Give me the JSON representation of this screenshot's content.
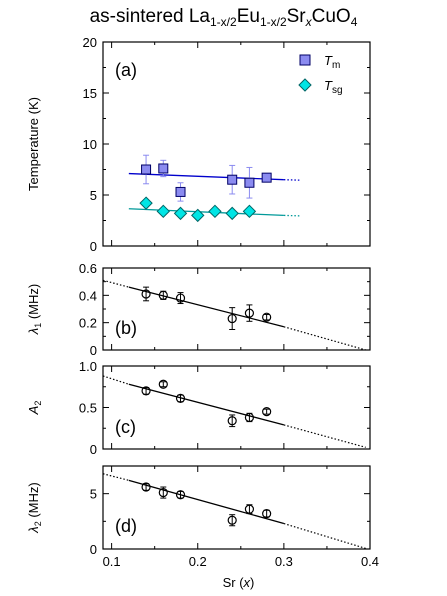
{
  "title": {
    "prefix": "as-sintered La",
    "la_sub": "1-x/2",
    "eu": "Eu",
    "eu_sub": "1-x/2",
    "sr": "Sr",
    "sr_sub": "x",
    "suffix": "CuO",
    "o_sub": "4"
  },
  "chart_data": [
    {
      "type": "scatter",
      "panel_label": "(a)",
      "ylabel": "Temperature (K)",
      "ylim": [
        0,
        20
      ],
      "yticks": [
        0,
        5,
        10,
        15,
        20
      ],
      "xlim": [
        0.09,
        0.4
      ],
      "legend_position": "top-right",
      "series": [
        {
          "name": "Tm",
          "name_main": "T",
          "name_sub": "m",
          "marker": "square",
          "color": "#8b8bf0",
          "x": [
            0.14,
            0.16,
            0.18,
            0.24,
            0.26,
            0.28
          ],
          "y": [
            7.5,
            7.6,
            5.3,
            6.5,
            6.2,
            6.7
          ],
          "err": [
            1.4,
            0.8,
            0.9,
            1.4,
            1.5,
            0.4
          ],
          "fit": {
            "x0": 0.12,
            "y0": 7.1,
            "x1": 0.3,
            "y1": 6.5,
            "ext_x1": 0.32,
            "ext_y1": 6.45,
            "color": "#0000cc"
          }
        },
        {
          "name": "Tsg",
          "name_main": "T",
          "name_sub": "sg",
          "marker": "diamond",
          "color": "#00e5e5",
          "x": [
            0.14,
            0.16,
            0.18,
            0.2,
            0.22,
            0.24,
            0.26
          ],
          "y": [
            4.2,
            3.4,
            3.2,
            3.0,
            3.4,
            3.2,
            3.4
          ],
          "err": [
            0.2,
            0.2,
            0.2,
            0.2,
            0.2,
            0.2,
            0.2
          ],
          "fit": {
            "x0": 0.12,
            "y0": 3.65,
            "x1": 0.3,
            "y1": 3.0,
            "ext_x1": 0.32,
            "ext_y1": 2.95,
            "color": "#009999"
          }
        }
      ]
    },
    {
      "type": "scatter",
      "panel_label": "(b)",
      "ylabel_main": "λ",
      "ylabel_sub": "1",
      "ylabel_rest": " (MHz)",
      "ylim": [
        0,
        0.6
      ],
      "yticks": [
        0,
        0.2,
        0.4,
        0.6
      ],
      "ytick_labels": [
        "0",
        "0.2",
        "0.4",
        "0.6"
      ],
      "xlim": [
        0.09,
        0.4
      ],
      "series": [
        {
          "marker": "circle",
          "x": [
            0.14,
            0.16,
            0.18,
            0.24,
            0.26,
            0.28
          ],
          "y": [
            0.41,
            0.4,
            0.38,
            0.23,
            0.27,
            0.24
          ],
          "err": [
            0.05,
            0.03,
            0.04,
            0.08,
            0.06,
            0.02
          ],
          "fit": {
            "x0": 0.12,
            "y0": 0.46,
            "x1": 0.3,
            "y1": 0.17,
            "dot_start_x": 0.09,
            "dot_start_y": 0.51,
            "dot_end_x": 0.395,
            "dot_end_y": 0.0
          }
        }
      ]
    },
    {
      "type": "scatter",
      "panel_label": "(c)",
      "ylabel_main": "A",
      "ylabel_sub": "2",
      "ylabel_rest": "",
      "ylim": [
        0,
        1.0
      ],
      "yticks": [
        0,
        0.5,
        1.0
      ],
      "ytick_labels": [
        "0",
        "0.5",
        "1.0"
      ],
      "xlim": [
        0.09,
        0.4
      ],
      "series": [
        {
          "marker": "circle",
          "x": [
            0.14,
            0.16,
            0.18,
            0.24,
            0.26,
            0.28
          ],
          "y": [
            0.7,
            0.78,
            0.61,
            0.34,
            0.38,
            0.45
          ],
          "err": [
            0.04,
            0.03,
            0.04,
            0.07,
            0.05,
            0.03
          ],
          "fit": {
            "x0": 0.12,
            "y0": 0.78,
            "x1": 0.3,
            "y1": 0.29,
            "dot_start_x": 0.09,
            "dot_start_y": 0.88,
            "dot_end_x": 0.395,
            "dot_end_y": 0.02
          }
        }
      ]
    },
    {
      "type": "scatter",
      "panel_label": "(d)",
      "ylabel_main": "λ",
      "ylabel_sub": "2",
      "ylabel_rest": " (MHz)",
      "ylim": [
        0,
        7.5
      ],
      "yticks": [
        0,
        5
      ],
      "ytick_labels": [
        "0",
        "5"
      ],
      "xlim": [
        0.09,
        0.4
      ],
      "xlabel_main": "Sr (",
      "xlabel_var": "x",
      "xlabel_end": ")",
      "xticks": [
        0.1,
        0.2,
        0.3,
        0.4
      ],
      "xtick_labels": [
        "0.1",
        "0.2",
        "0.3",
        "0.4"
      ],
      "series": [
        {
          "marker": "circle",
          "x": [
            0.14,
            0.16,
            0.18,
            0.24,
            0.26,
            0.28
          ],
          "y": [
            5.6,
            5.1,
            4.9,
            2.6,
            3.6,
            3.2
          ],
          "err": [
            0.3,
            0.5,
            0.3,
            0.5,
            0.4,
            0.3
          ],
          "fit": {
            "x0": 0.12,
            "y0": 6.2,
            "x1": 0.3,
            "y1": 2.3,
            "dot_start_x": 0.09,
            "dot_start_y": 6.8,
            "dot_end_x": 0.395,
            "dot_end_y": 0.05
          }
        }
      ]
    }
  ]
}
